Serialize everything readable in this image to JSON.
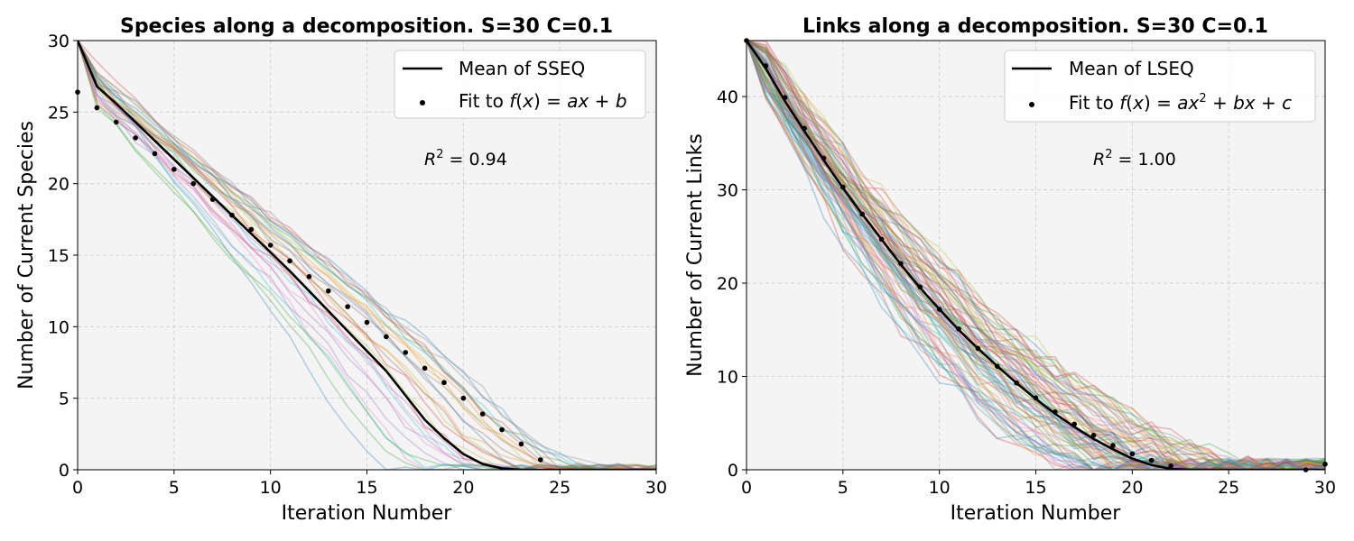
{
  "chart_data": [
    {
      "type": "line",
      "title": "Species along a decomposition. S=30 C=0.1",
      "xlabel": "Iteration Number",
      "ylabel": "Number of Current Species",
      "xlim": [
        0,
        30
      ],
      "ylim": [
        0,
        30
      ],
      "xticks": [
        "0",
        "5",
        "10",
        "15",
        "20",
        "25",
        "30"
      ],
      "yticks": [
        "0",
        "5",
        "10",
        "15",
        "20",
        "25",
        "30"
      ],
      "grid": true,
      "legend_position": "top-right",
      "legend": [
        "Mean of SSEQ",
        "Fit to f(x) = ax + b"
      ],
      "annotation": "R² = 0.94",
      "mean_series": {
        "name": "Mean of SSEQ",
        "x": [
          0,
          1,
          2,
          3,
          4,
          5,
          6,
          7,
          8,
          9,
          10,
          11,
          12,
          13,
          14,
          15,
          16,
          17,
          18,
          19,
          20,
          21,
          22,
          23,
          24,
          25,
          26,
          27,
          28,
          29,
          30
        ],
        "y": [
          30,
          26.8,
          25.6,
          24.3,
          23,
          21.7,
          20.4,
          19.1,
          17.8,
          16.5,
          15.2,
          13.9,
          12.5,
          11.1,
          9.7,
          8.3,
          6.9,
          5.2,
          3.5,
          2.2,
          1.1,
          0.4,
          0.1,
          0,
          0,
          0,
          0,
          0,
          0,
          0,
          0
        ]
      },
      "fit_series": {
        "name": "Fit to f(x) = ax + b",
        "x": [
          0,
          1,
          2,
          3,
          4,
          5,
          6,
          7,
          8,
          9,
          10,
          11,
          12,
          13,
          14,
          15,
          16,
          17,
          18,
          19,
          20,
          21,
          22,
          23,
          24
        ],
        "y": [
          26.4,
          25.3,
          24.3,
          23.2,
          22.1,
          21.0,
          20.0,
          18.9,
          17.8,
          16.8,
          15.7,
          14.6,
          13.5,
          12.5,
          11.4,
          10.3,
          9.3,
          8.2,
          7.1,
          6.1,
          5.0,
          3.9,
          2.8,
          1.8,
          0.7
        ]
      },
      "background_series_count": 30
    },
    {
      "type": "line",
      "title": "Links along a decomposition. S=30 C=0.1",
      "xlabel": "Iteration Number",
      "ylabel": "Number of Current Links",
      "xlim": [
        0,
        30
      ],
      "ylim": [
        0,
        46
      ],
      "xticks": [
        "0",
        "5",
        "10",
        "15",
        "20",
        "25",
        "30"
      ],
      "yticks": [
        "0",
        "10",
        "20",
        "30",
        "40"
      ],
      "grid": true,
      "legend_position": "top-right",
      "legend": [
        "Mean of LSEQ",
        "Fit to f(x) = ax² + bx + c"
      ],
      "annotation": "R² = 1.00",
      "mean_series": {
        "name": "Mean of LSEQ",
        "x": [
          0,
          1,
          2,
          3,
          4,
          5,
          6,
          7,
          8,
          9,
          10,
          11,
          12,
          13,
          14,
          15,
          16,
          17,
          18,
          19,
          20,
          21,
          22,
          23,
          24,
          25,
          26,
          27,
          28,
          29,
          30
        ],
        "y": [
          46,
          43,
          39.5,
          36.3,
          33.2,
          30.2,
          27.4,
          24.7,
          22.0,
          19.5,
          17.2,
          15.0,
          13.0,
          11.1,
          9.3,
          7.6,
          6.0,
          4.6,
          3.3,
          2.2,
          1.2,
          0.5,
          0.1,
          0,
          0,
          0,
          0,
          0,
          0,
          0,
          0
        ]
      },
      "fit_series": {
        "name": "Fit to f(x) = ax² + bx + c",
        "x": [
          0,
          1,
          2,
          3,
          4,
          5,
          6,
          7,
          8,
          9,
          10,
          11,
          12,
          13,
          14,
          15,
          16,
          17,
          18,
          19,
          20,
          21,
          22,
          29,
          30
        ],
        "y": [
          46.0,
          43.3,
          39.9,
          36.6,
          33.4,
          30.3,
          27.4,
          24.7,
          22.1,
          19.6,
          17.2,
          15.1,
          13.0,
          11.1,
          9.3,
          7.7,
          6.2,
          4.9,
          3.7,
          2.6,
          1.7,
          1.0,
          0.4,
          0,
          0.6
        ]
      },
      "background_series_count": 80
    }
  ],
  "colors": {
    "plot_background": "#f4f4f4",
    "grid": "#cccccc",
    "mean_line": "#000000",
    "fit_points": "#000000",
    "palette": [
      "#1f77b4",
      "#ff7f0e",
      "#2ca02c",
      "#d62728",
      "#9467bd",
      "#8c564b",
      "#e377c2",
      "#7f7f7f",
      "#bcbd22",
      "#17becf"
    ]
  }
}
